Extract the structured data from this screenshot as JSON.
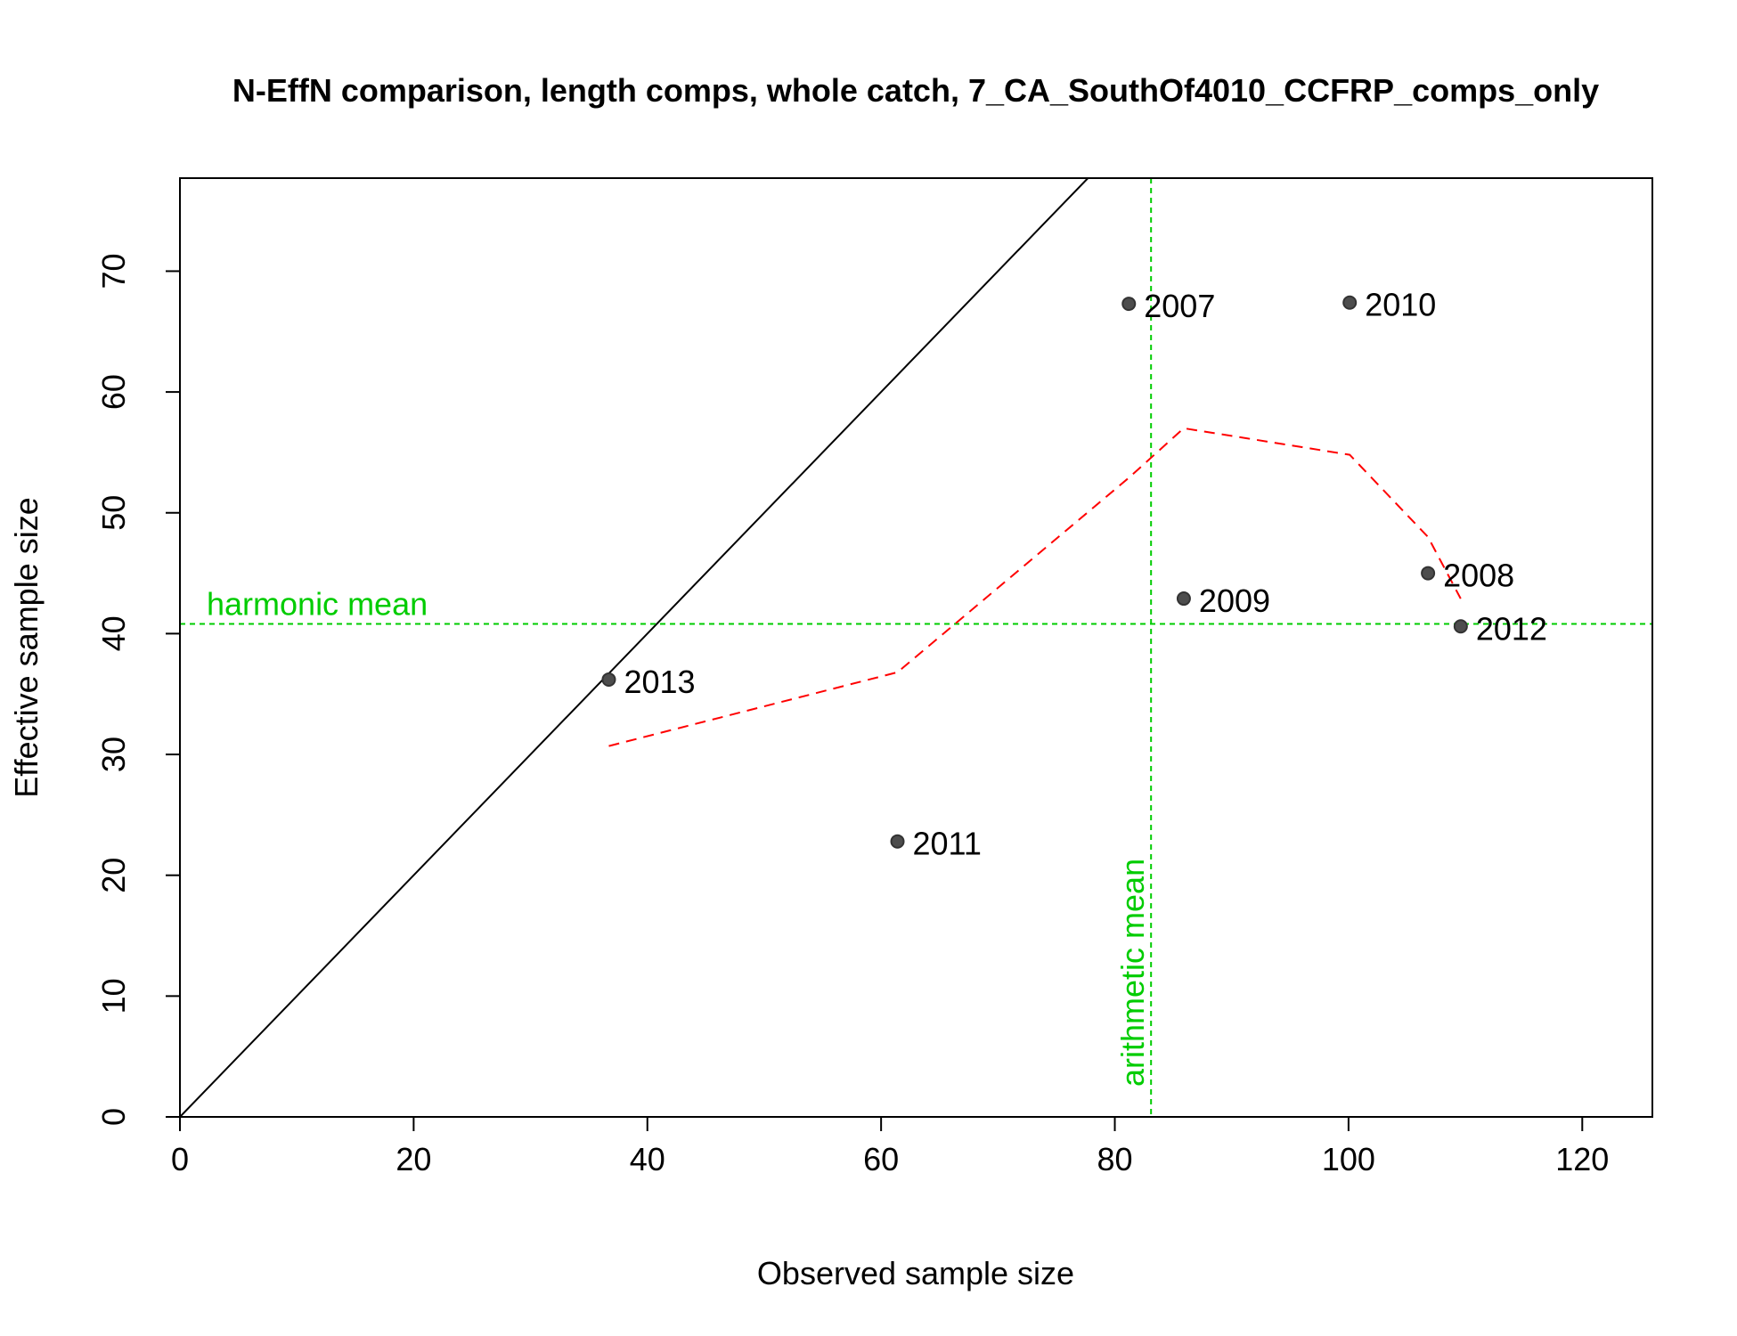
{
  "chart_data": {
    "type": "scatter",
    "title": "N-EffN comparison, length comps, whole catch, 7_CA_SouthOf4010_CCFRP_comps_only",
    "xlabel": "Observed sample size",
    "ylabel": "Effective sample size",
    "xlim": [
      0,
      126
    ],
    "ylim": [
      0,
      77.7
    ],
    "x_ticks": [
      0,
      20,
      40,
      60,
      80,
      100,
      120
    ],
    "y_ticks": [
      0,
      10,
      20,
      30,
      40,
      50,
      60,
      70
    ],
    "points": [
      {
        "label": "2007",
        "x": 81.2,
        "y": 67.3
      },
      {
        "label": "2008",
        "x": 106.8,
        "y": 45.0
      },
      {
        "label": "2009",
        "x": 85.9,
        "y": 42.9
      },
      {
        "label": "2010",
        "x": 100.1,
        "y": 67.4
      },
      {
        "label": "2011",
        "x": 61.4,
        "y": 22.8
      },
      {
        "label": "2012",
        "x": 109.6,
        "y": 40.6
      },
      {
        "label": "2013",
        "x": 36.7,
        "y": 36.2
      }
    ],
    "one_to_one_line": true,
    "smoother": {
      "color": "#ff0000",
      "x": [
        36.7,
        61.4,
        81.2,
        85.9,
        100.1,
        106.8,
        109.6
      ],
      "y": [
        30.7,
        36.8,
        52.9,
        57.0,
        54.8,
        48.0,
        42.9
      ]
    },
    "harmonic_mean": {
      "value": 40.8,
      "label": "harmonic mean",
      "color": "#00cc00"
    },
    "arithmetic_mean": {
      "value": 83.1,
      "label": "arithmetic mean",
      "color": "#00cc00"
    },
    "point_color": "#4d4d4d"
  }
}
